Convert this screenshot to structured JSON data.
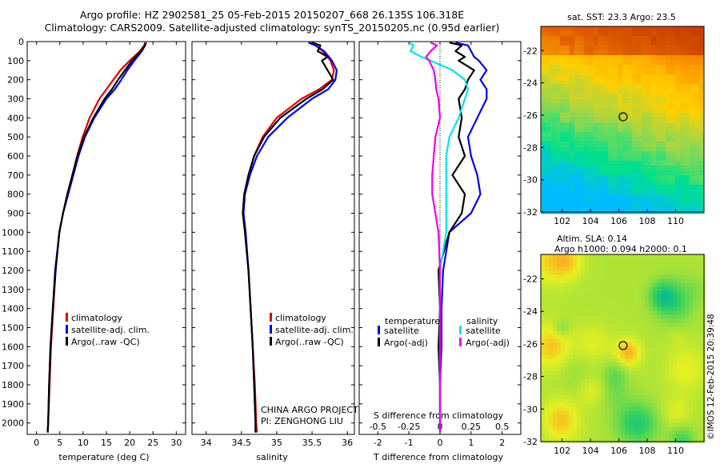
{
  "title_line1": "Argo profile: HZ 2902581_25 05-Feb-2015 20150207_668 26.135S 106.318E",
  "title_line2": "Climatology: CARS2009. Satellite-adjusted climatology: synTS_20150205.nc (0.95d earlier)",
  "project_line1": "CHINA ARGO PROJECT",
  "project_line2": "PI: ZENGHONG LIU",
  "credit": "©IMOS 12-Feb-2015 20:39:48",
  "colors": {
    "climatology": "#e00000",
    "satellite": "#0000ee",
    "argo": "#000000",
    "cyan": "#00e5ee",
    "magenta": "#ee00ee"
  },
  "chart_data": [
    {
      "type": "line",
      "xlabel": "temperature (deg C)",
      "xticks": [
        0,
        5,
        10,
        15,
        20,
        25,
        30
      ],
      "xlim": [
        -2,
        32
      ],
      "ylim": [
        2060,
        0
      ],
      "yticks": [
        0,
        100,
        200,
        300,
        400,
        500,
        600,
        700,
        800,
        900,
        1000,
        1100,
        1200,
        1300,
        1400,
        1500,
        1600,
        1700,
        1800,
        1900,
        2000
      ],
      "legend": [
        "climatology",
        "satellite-adj. clim.",
        "Argo(..raw -QC)"
      ],
      "depth": [
        5,
        20,
        50,
        100,
        150,
        200,
        250,
        300,
        400,
        500,
        600,
        700,
        800,
        900,
        1000,
        1200,
        1400,
        1600,
        1800,
        2000,
        2050
      ],
      "series": [
        {
          "name": "climatology",
          "color": "#e00000",
          "values": [
            23.3,
            23.1,
            22.2,
            20.0,
            18.0,
            16.5,
            15.0,
            13.5,
            11.4,
            9.9,
            8.7,
            7.7,
            6.8,
            5.7,
            4.9,
            4.1,
            3.6,
            3.1,
            2.8,
            2.5,
            2.4
          ]
        },
        {
          "name": "satellite-adj. clim.",
          "color": "#0000ee",
          "values": [
            23.5,
            23.3,
            22.6,
            21.0,
            19.5,
            18.2,
            16.8,
            15.0,
            12.4,
            10.4,
            9.0,
            7.9,
            6.8,
            5.7,
            4.9,
            4.0,
            3.5,
            3.0,
            2.7,
            2.5,
            2.4
          ]
        },
        {
          "name": "Argo(..raw -QC)",
          "color": "#000000",
          "values": [
            23.5,
            23.3,
            22.4,
            20.5,
            19.0,
            17.5,
            16.2,
            14.6,
            12.2,
            10.2,
            8.8,
            7.7,
            6.6,
            5.7,
            4.9,
            4.1,
            3.5,
            3.0,
            2.7,
            2.5,
            2.4
          ]
        }
      ]
    },
    {
      "type": "line",
      "xlabel": "salinity",
      "xticks": [
        34,
        34.5,
        35,
        35.5,
        36
      ],
      "xlim": [
        33.8,
        36.1
      ],
      "ylim": [
        2060,
        0
      ],
      "legend": [
        "climatology",
        "satellite-adj. clim.",
        "Argo(..raw -QC)"
      ],
      "depth": [
        5,
        20,
        50,
        80,
        100,
        150,
        200,
        250,
        300,
        400,
        500,
        600,
        700,
        800,
        900,
        1000,
        1200,
        1400,
        1600,
        1800,
        2000,
        2050
      ],
      "series": [
        {
          "name": "climatology",
          "color": "#e00000",
          "values": [
            35.45,
            35.55,
            35.65,
            35.72,
            35.76,
            35.81,
            35.78,
            35.6,
            35.35,
            35.0,
            34.8,
            34.68,
            34.6,
            34.54,
            34.52,
            34.55,
            34.6,
            34.63,
            34.66,
            34.69,
            34.71,
            34.72
          ]
        },
        {
          "name": "satellite-adj. clim.",
          "color": "#0000ee",
          "values": [
            35.45,
            35.55,
            35.67,
            35.74,
            35.78,
            35.85,
            35.83,
            35.73,
            35.5,
            35.15,
            34.88,
            34.72,
            34.62,
            34.55,
            34.53,
            34.56,
            34.6,
            34.63,
            34.66,
            34.68,
            34.7,
            34.7
          ]
        },
        {
          "name": "Argo(..raw -QC)",
          "color": "#000000",
          "values": [
            35.5,
            35.62,
            35.58,
            35.72,
            35.64,
            35.72,
            35.8,
            35.65,
            35.42,
            35.05,
            34.82,
            34.68,
            34.6,
            34.54,
            34.52,
            34.55,
            34.6,
            34.63,
            34.66,
            34.68,
            34.7,
            34.7
          ]
        }
      ]
    },
    {
      "type": "line",
      "xlabel": "T difference from climatology",
      "xlabel_top": "S difference from climatology",
      "xticks": [
        -2,
        -1,
        0,
        1,
        2
      ],
      "xlim": [
        -2.6,
        2.6
      ],
      "sticks": [
        "-0.5",
        "-0.25",
        "0",
        "0.25",
        "0.5"
      ],
      "ylim": [
        2060,
        0
      ],
      "legend_headers": [
        "temperature",
        "salinity"
      ],
      "legend": [
        "satellite",
        "Argo(-adj)",
        "satellite",
        "Argo(-adj)"
      ],
      "depth": [
        5,
        20,
        50,
        80,
        100,
        150,
        200,
        250,
        300,
        400,
        500,
        600,
        700,
        800,
        900,
        1000,
        1200,
        1400,
        1600,
        1800,
        2000,
        2050
      ],
      "series": [
        {
          "name": "satellite",
          "color": "#0000ee",
          "values": [
            0.5,
            0.9,
            1.0,
            1.1,
            1.25,
            1.5,
            1.3,
            1.5,
            1.5,
            1.2,
            0.9,
            1.0,
            1.2,
            1.3,
            1.0,
            0.3,
            0.1,
            0.05,
            0.05,
            0.0,
            0.0,
            0.0
          ]
        },
        {
          "name": "Argo(-adj)",
          "color": "#000000",
          "values": [
            0.3,
            0.7,
            0.5,
            0.8,
            0.6,
            1.1,
            0.9,
            0.8,
            0.6,
            0.7,
            0.6,
            0.8,
            0.4,
            0.8,
            0.7,
            0.3,
            -0.05,
            0.0,
            -0.05,
            0.0,
            0.0,
            0.0
          ]
        },
        {
          "name": "satellite",
          "color": "#00e5ee",
          "values": [
            -1.0,
            -0.85,
            -0.95,
            -0.6,
            -0.3,
            0.4,
            0.8,
            0.9,
            0.8,
            0.6,
            0.3,
            0.2,
            0.2,
            0.2,
            0.2,
            0.2,
            0.0,
            0.0,
            0.0,
            0.0,
            0.0,
            0.0
          ]
        },
        {
          "name": "Argo(-adj)",
          "color": "#ee00ee",
          "values": [
            -0.3,
            -0.1,
            -0.3,
            -0.45,
            -0.35,
            -0.2,
            -0.15,
            -0.12,
            -0.05,
            0.0,
            -0.15,
            -0.2,
            -0.25,
            -0.25,
            -0.15,
            -0.05,
            0.0,
            0.0,
            0.0,
            0.0,
            0.0,
            0.0
          ]
        }
      ]
    }
  ],
  "map_sst": {
    "label": "sat. SST: 23.3 Argo: 23.5",
    "xticks": [
      102,
      104,
      106,
      108,
      110
    ],
    "yticks": [
      -22,
      -24,
      -26,
      -28,
      -30,
      -32
    ],
    "xlim": [
      100.5,
      112
    ],
    "ylim": [
      -32,
      -20.5
    ],
    "point": [
      106.3,
      -26.1
    ],
    "colorramp": [
      "#00bbff",
      "#00e08a",
      "#9bd64a",
      "#ffd000",
      "#ffa000",
      "#e06000",
      "#c84000"
    ]
  },
  "map_sla": {
    "label_line1": "Altim. SLA: 0.14",
    "label_line2": "Argo h1000: 0.094 h2000: 0.1",
    "xticks": [
      102,
      104,
      106,
      108,
      110
    ],
    "yticks": [
      -22,
      -24,
      -26,
      -28,
      -30,
      -32
    ],
    "xlim": [
      100.5,
      112
    ],
    "ylim": [
      -32,
      -20.5
    ],
    "point": [
      106.3,
      -26.1
    ],
    "colorramp": [
      "#00b4a0",
      "#30d060",
      "#9bdf3c",
      "#e8f020",
      "#ffa020",
      "#ff5030"
    ]
  }
}
